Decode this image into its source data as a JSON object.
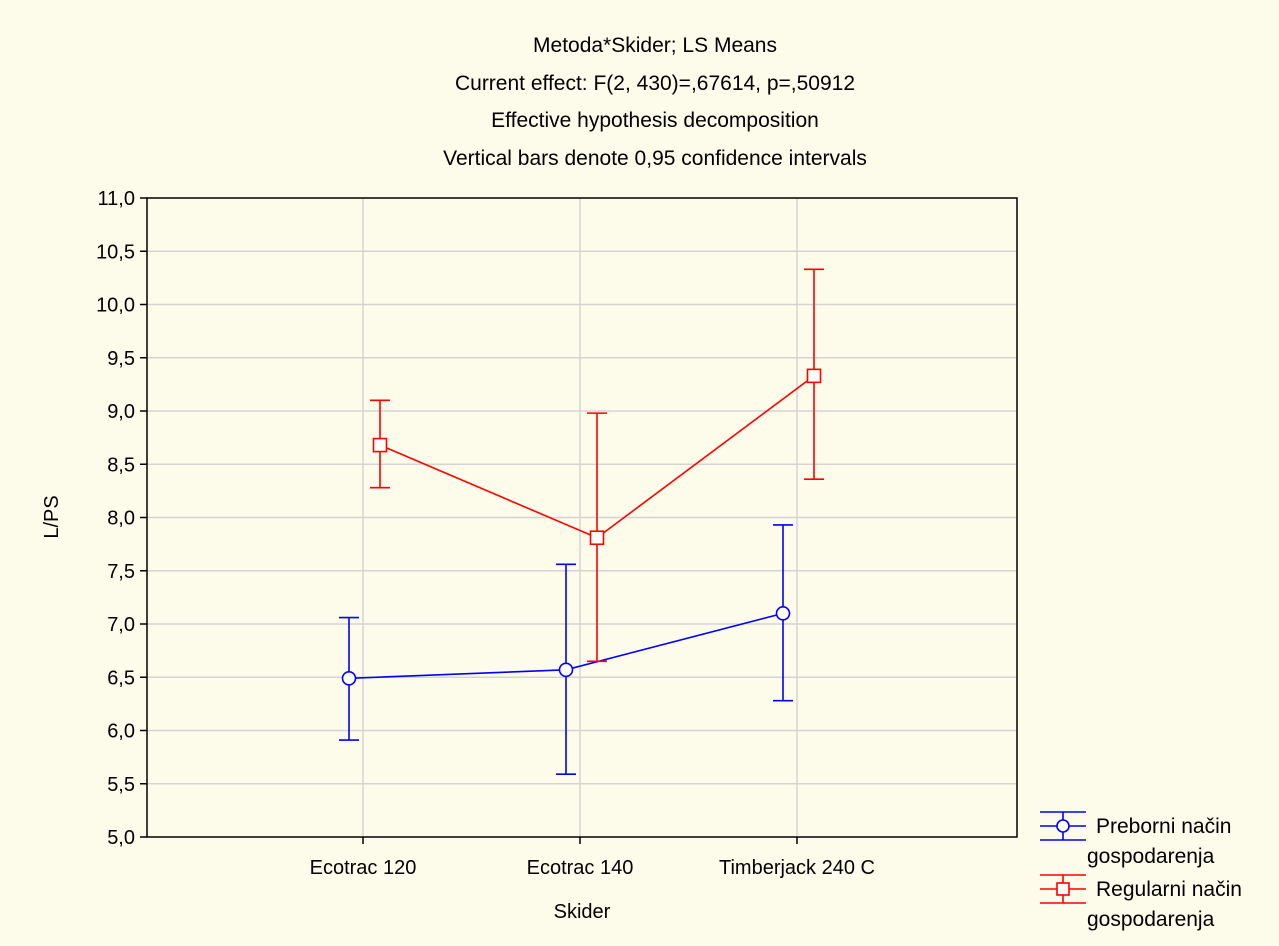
{
  "chart_data": {
    "type": "line",
    "title_lines": [
      "Metoda*Skider; LS Means",
      "Current effect: F(2, 430)=,67614, p=,50912",
      "Effective hypothesis decomposition",
      "Vertical bars denote 0,95 confidence intervals"
    ],
    "xlabel": "Skider",
    "ylabel": "L/PS",
    "categories": [
      "Ecotrac 120",
      "Ecotrac 140",
      "Timberjack 240 C"
    ],
    "ylim": [
      5.0,
      11.0
    ],
    "yticks": [
      "5,0",
      "5,5",
      "6,0",
      "6,5",
      "7,0",
      "7,5",
      "8,0",
      "8,5",
      "9,0",
      "9,5",
      "10,0",
      "10,5",
      "11,0"
    ],
    "grid": true,
    "legend_position": "bottom-right",
    "series": [
      {
        "name_lines": [
          "Preborni način",
          "gospodarenja"
        ],
        "color": "#0000ff",
        "marker": "circle",
        "values": [
          6.49,
          6.57,
          7.1
        ],
        "ci_low": [
          5.91,
          5.59,
          6.28
        ],
        "ci_high": [
          7.06,
          7.56,
          7.93
        ]
      },
      {
        "name_lines": [
          "Regularni način",
          "gospodarenja"
        ],
        "color": "#ff0000",
        "marker": "square",
        "values": [
          8.68,
          7.81,
          9.33
        ],
        "ci_low": [
          8.28,
          6.65,
          8.36
        ],
        "ci_high": [
          9.1,
          8.98,
          10.33
        ]
      }
    ]
  }
}
